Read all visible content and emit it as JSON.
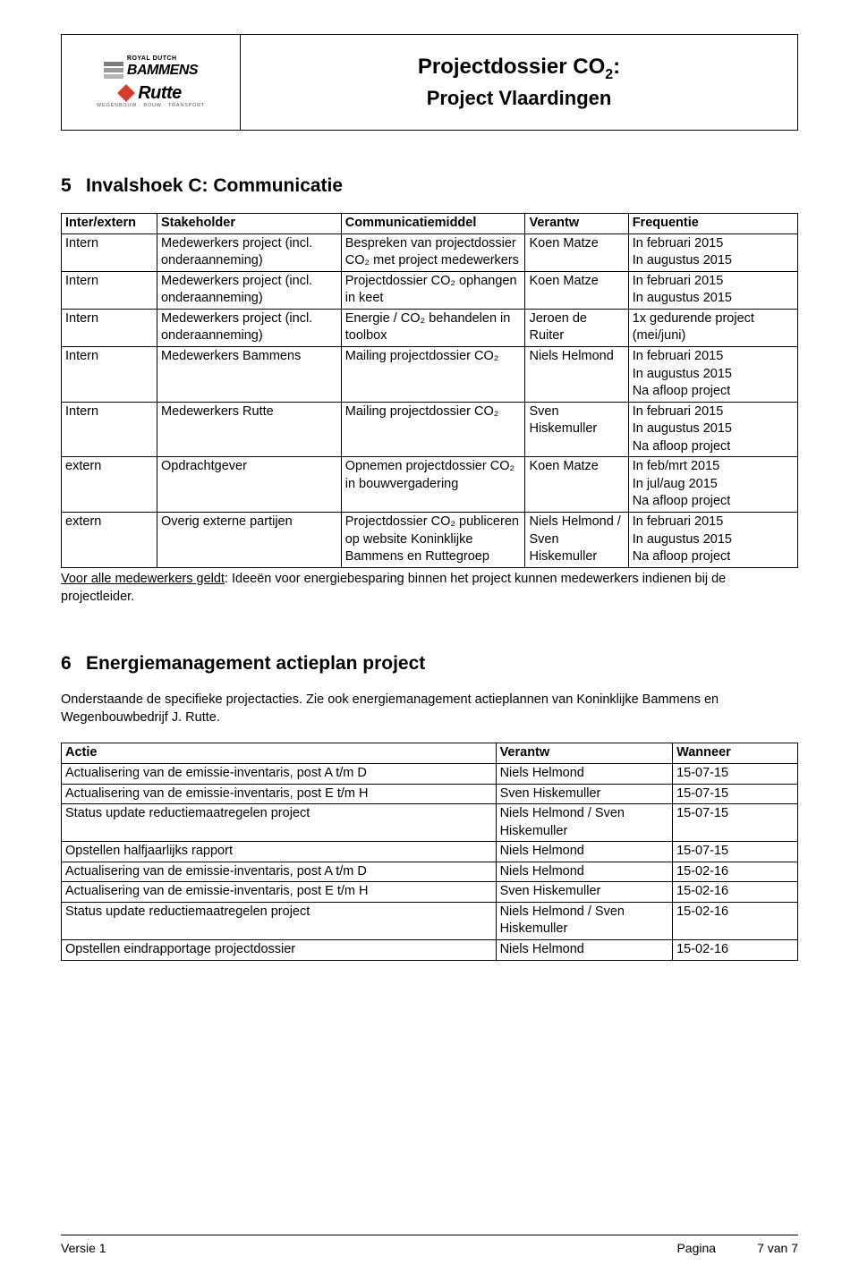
{
  "header": {
    "logo1_top": "ROYAL DUTCH",
    "logo1_brand": "BAMMENS",
    "logo2_brand": "Rutte",
    "logo2_sub": "WEGENBOUW · BOUW · TRANSPORT",
    "title_line1_pre": "Projectdossier CO",
    "title_line1_sub": "2",
    "title_line1_post": ":",
    "title_line2": "Project Vlaardingen"
  },
  "section5": {
    "num": "5",
    "title": "Invalshoek C: Communicatie",
    "columns": [
      "Inter/extern",
      "Stakeholder",
      "Communicatiemiddel",
      "Verantw",
      "Frequentie"
    ],
    "col_widths": [
      "13%",
      "25%",
      "25%",
      "14%",
      "23%"
    ],
    "rows": [
      [
        "Intern",
        "Medewerkers project (incl. onderaanneming)",
        "Bespreken van projectdossier CO₂ met project medewerkers",
        "Koen Matze",
        "In februari 2015\nIn augustus 2015"
      ],
      [
        "Intern",
        "Medewerkers project (incl. onderaanneming)",
        "Projectdossier CO₂ ophangen in keet",
        "Koen Matze",
        "In februari 2015\nIn augustus 2015"
      ],
      [
        "Intern",
        "Medewerkers project (incl. onderaanneming)",
        "Energie / CO₂ behandelen in toolbox",
        "Jeroen de Ruiter",
        "1x gedurende project (mei/juni)"
      ],
      [
        "Intern",
        "Medewerkers Bammens",
        "Mailing projectdossier CO₂",
        "Niels Helmond",
        "In februari 2015\nIn augustus 2015\nNa afloop project"
      ],
      [
        "Intern",
        "Medewerkers Rutte",
        "Mailing projectdossier CO₂",
        "Sven Hiskemuller",
        "In februari 2015\nIn augustus 2015\nNa afloop project"
      ],
      [
        "extern",
        "Opdrachtgever",
        "Opnemen projectdossier CO₂ in bouwvergadering",
        "Koen Matze",
        "In feb/mrt 2015\nIn jul/aug 2015\nNa afloop project"
      ],
      [
        "extern",
        "Overig externe partijen",
        "Projectdossier CO₂ publiceren op website Koninklijke Bammens en Ruttegroep",
        "Niels Helmond / Sven Hiskemuller",
        "In februari 2015\nIn augustus 2015\nNa afloop project"
      ]
    ],
    "note_underlined": "Voor alle medewerkers geldt",
    "note_rest": ": Ideeën voor energiebesparing binnen het project kunnen medewerkers indienen bij de projectleider."
  },
  "section6": {
    "num": "6",
    "title": "Energiemanagement actieplan project",
    "intro": "Onderstaande de specifieke projectacties. Zie ook energiemanagement actieplannen van Koninklijke Bammens en Wegenbouwbedrijf J. Rutte.",
    "columns": [
      "Actie",
      "Verantw",
      "Wanneer"
    ],
    "col_widths": [
      "59%",
      "24%",
      "17%"
    ],
    "rows": [
      [
        "Actualisering van de emissie-inventaris, post A t/m D",
        "Niels Helmond",
        "15-07-15"
      ],
      [
        "Actualisering van de emissie-inventaris, post E t/m H",
        "Sven Hiskemuller",
        "15-07-15"
      ],
      [
        "Status update reductiemaatregelen project",
        "Niels Helmond / Sven Hiskemuller",
        "15-07-15"
      ],
      [
        "Opstellen halfjaarlijks rapport",
        "Niels Helmond",
        "15-07-15"
      ],
      [
        "Actualisering van de emissie-inventaris, post A t/m D",
        "Niels Helmond",
        "15-02-16"
      ],
      [
        "Actualisering van de emissie-inventaris, post E t/m H",
        "Sven Hiskemuller",
        "15-02-16"
      ],
      [
        "Status update reductiemaatregelen project",
        "Niels Helmond / Sven Hiskemuller",
        "15-02-16"
      ],
      [
        "Opstellen eindrapportage projectdossier",
        "Niels Helmond",
        "15-02-16"
      ]
    ]
  },
  "footer": {
    "version": "Versie 1",
    "page_label": "Pagina",
    "page_value": "7 van 7"
  }
}
